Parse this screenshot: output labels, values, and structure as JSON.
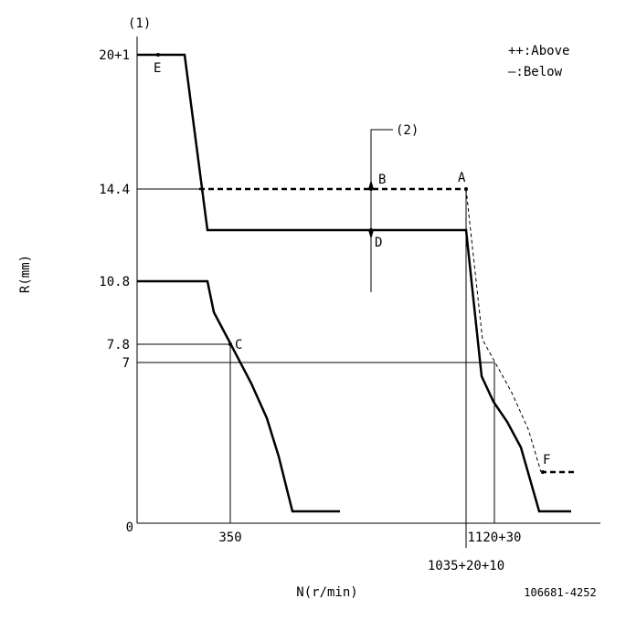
{
  "diagram": {
    "labels": {
      "one": "(1)",
      "two": "(2)"
    },
    "legend": {
      "above": "++:Above",
      "below": "—:Below"
    },
    "points": {
      "E": "E",
      "B": "B",
      "A": "A",
      "D": "D",
      "C": "C",
      "F": "F"
    },
    "y_axis": {
      "title": "R(mm)",
      "ticks": [
        "20+1",
        "14.4",
        "10.8",
        "7.8",
        "7",
        "0"
      ]
    },
    "x_axis": {
      "title": "N(r/min)",
      "ticks": [
        "350",
        "1120+30",
        "1035+20+10"
      ]
    },
    "code": "106681-4252"
  }
}
